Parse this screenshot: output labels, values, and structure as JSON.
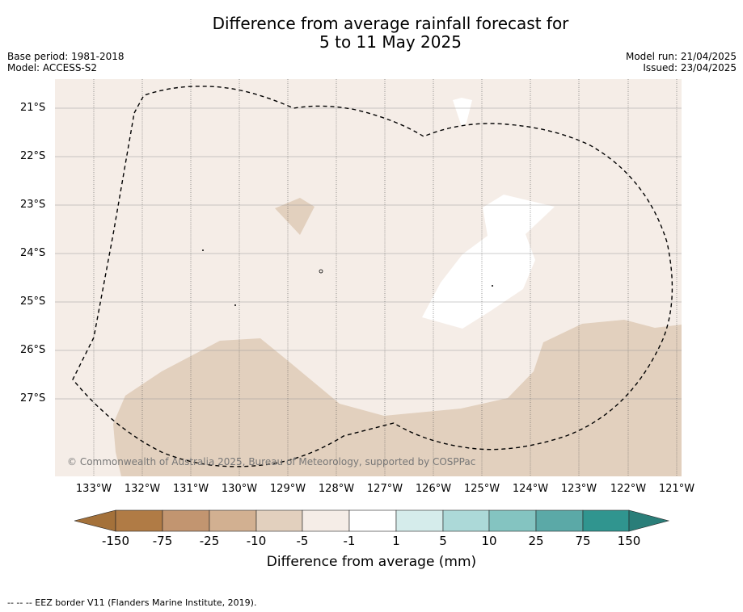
{
  "header": {
    "title_line1": "Difference from average rainfall forecast for",
    "title_line2": "5 to 11 May 2025",
    "base_period": "Base period: 1981-2018",
    "model": "Model: ACCESS-S2",
    "model_run": "Model run: 21/04/2025",
    "issued": "Issued: 23/04/2025"
  },
  "map": {
    "lat_labels": [
      "21°S",
      "22°S",
      "23°S",
      "24°S",
      "25°S",
      "26°S",
      "27°S"
    ],
    "lon_labels": [
      "133°W",
      "132°W",
      "131°W",
      "130°W",
      "129°W",
      "128°W",
      "127°W",
      "126°W",
      "125°W",
      "124°W",
      "123°W",
      "122°W",
      "121°W"
    ],
    "copyright": "© Commonwealth of Australia 2025, Bureau of Meteorology, supported by COSPPac",
    "colors": {
      "background_class": "#f5ede7",
      "dry_class": "#e2d0be",
      "neutral_class": "#ffffff"
    }
  },
  "colorbar": {
    "labels": [
      "-150",
      "-75",
      "-25",
      "-10",
      "-5",
      "-1",
      "1",
      "5",
      "10",
      "25",
      "75",
      "150"
    ],
    "colors": [
      "#a4713a",
      "#b07b45",
      "#c29570",
      "#d2b091",
      "#e2d0be",
      "#f5ede7",
      "#ffffff",
      "#d5eceb",
      "#acd9d8",
      "#84c4c1",
      "#5ba9a7",
      "#30958f",
      "#2a7e79"
    ],
    "title": "Difference from average (mm)"
  },
  "footnote": "--  --  -- EEZ border V11 (Flanders Marine Institute, 2019)."
}
